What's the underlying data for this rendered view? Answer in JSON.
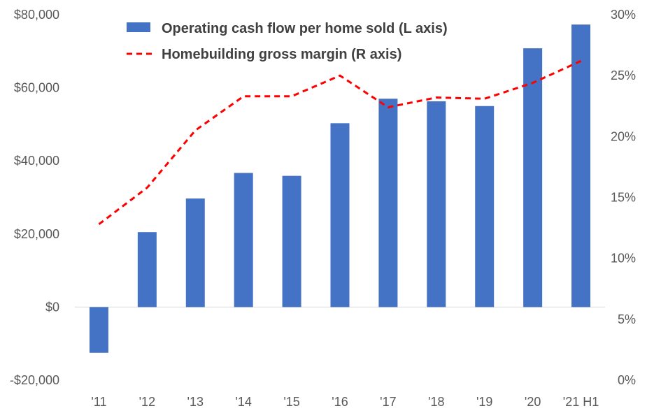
{
  "chart_data": {
    "type": "bar",
    "categories": [
      "'11",
      "'12",
      "'13",
      "'14",
      "'15",
      "'16",
      "'17",
      "'18",
      "'19",
      "'20",
      "'21 H1"
    ],
    "series": [
      {
        "name": "Operating cash flow per home sold (L axis)",
        "type": "bar",
        "axis": "left",
        "color": "#4472C4",
        "values": [
          -12500,
          20500,
          29700,
          36700,
          35900,
          50300,
          57000,
          56300,
          55000,
          70800,
          77300
        ]
      },
      {
        "name": "Homebuilding gross margin (R axis)",
        "type": "line",
        "style": "dashed",
        "axis": "right",
        "color": "#FF0000",
        "values": [
          12.8,
          15.8,
          20.5,
          23.3,
          23.3,
          25.0,
          22.4,
          23.2,
          23.1,
          24.4,
          26.2
        ]
      }
    ],
    "y_left": {
      "ticks": [
        "-$20,000",
        "$0",
        "$20,000",
        "$40,000",
        "$60,000",
        "$80,000"
      ],
      "tick_values": [
        -20000,
        0,
        20000,
        40000,
        60000,
        80000
      ],
      "range": [
        -20000,
        80000
      ]
    },
    "y_right": {
      "ticks": [
        "0%",
        "5%",
        "10%",
        "15%",
        "20%",
        "25%",
        "30%"
      ],
      "tick_values": [
        0,
        5,
        10,
        15,
        20,
        25,
        30
      ],
      "range": [
        0,
        30
      ]
    },
    "grid": false,
    "legend_position": "top-center"
  }
}
